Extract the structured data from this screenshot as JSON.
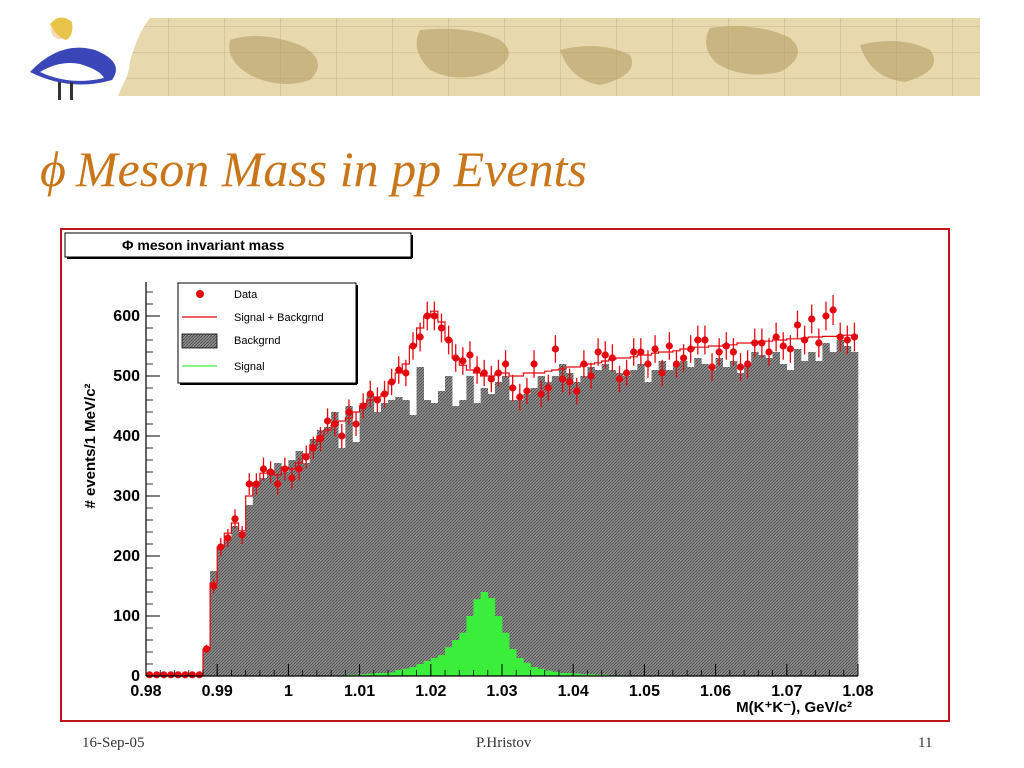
{
  "slide": {
    "title_symbol": "ϕ",
    "title_text": "Meson Mass in pp Events",
    "footer_date": "16-Sep-05",
    "footer_author": "P.Hristov",
    "footer_page": "11"
  },
  "colors": {
    "title": "#c9761a",
    "frame": "#c0141a",
    "data": "#e3080f",
    "signal_plus_background": "#e3080f",
    "background_fill": "#7a7a7a",
    "signal": "#3cee3c"
  },
  "chart_data": {
    "type": "bar",
    "title": "Φ meson invariant mass",
    "xlabel": "M(K⁺K⁻), GeV/c²",
    "ylabel": "# events/1 MeV/c²",
    "xlim": [
      0.98,
      1.08
    ],
    "ylim": [
      0,
      650
    ],
    "x_ticks": [
      "0.98",
      "0.99",
      "1",
      "1.01",
      "1.02",
      "1.03",
      "1.04",
      "1.05",
      "1.06",
      "1.07",
      "1.08"
    ],
    "y_ticks": [
      "0",
      "100",
      "200",
      "300",
      "400",
      "500",
      "600"
    ],
    "legend": {
      "position": "top-left",
      "entries": [
        "Data",
        "Signal + Backgrnd",
        "Backgrnd",
        "Signal"
      ]
    },
    "bin_width": 0.001,
    "x": [
      0.9805,
      0.9815,
      0.9825,
      0.9835,
      0.9845,
      0.9855,
      0.9865,
      0.9875,
      0.9885,
      0.9895,
      0.9905,
      0.9915,
      0.9925,
      0.9935,
      0.9945,
      0.9955,
      0.9965,
      0.9975,
      0.9985,
      0.9995,
      1.0005,
      1.0015,
      1.0025,
      1.0035,
      1.0045,
      1.0055,
      1.0065,
      1.0075,
      1.0085,
      1.0095,
      1.0105,
      1.0115,
      1.0125,
      1.0135,
      1.0145,
      1.0155,
      1.0165,
      1.0175,
      1.0185,
      1.0195,
      1.0205,
      1.0215,
      1.0225,
      1.0235,
      1.0245,
      1.0255,
      1.0265,
      1.0275,
      1.0285,
      1.0295,
      1.0305,
      1.0315,
      1.0325,
      1.0335,
      1.0345,
      1.0355,
      1.0365,
      1.0375,
      1.0385,
      1.0395,
      1.0405,
      1.0415,
      1.0425,
      1.0435,
      1.0445,
      1.0455,
      1.0465,
      1.0475,
      1.0485,
      1.0495,
      1.0505,
      1.0515,
      1.0525,
      1.0535,
      1.0545,
      1.0555,
      1.0565,
      1.0575,
      1.0585,
      1.0595,
      1.0605,
      1.0615,
      1.0625,
      1.0635,
      1.0645,
      1.0655,
      1.0665,
      1.0675,
      1.0685,
      1.0695,
      1.0705,
      1.0715,
      1.0725,
      1.0735,
      1.0745,
      1.0755,
      1.0765,
      1.0775,
      1.0785,
      1.0795
    ],
    "series": [
      {
        "name": "Data",
        "values": [
          2,
          2,
          2,
          2,
          2,
          2,
          2,
          2,
          45,
          150,
          215,
          230,
          262,
          235,
          320,
          320,
          345,
          340,
          320,
          345,
          330,
          345,
          365,
          380,
          395,
          425,
          420,
          400,
          440,
          420,
          450,
          470,
          460,
          470,
          490,
          510,
          505,
          550,
          565,
          600,
          600,
          580,
          560,
          530,
          525,
          535,
          510,
          505,
          495,
          505,
          520,
          480,
          465,
          475,
          520,
          470,
          480,
          545,
          495,
          490,
          475,
          520,
          500,
          540,
          535,
          530,
          495,
          505,
          540,
          540,
          520,
          545,
          505,
          550,
          520,
          530,
          545,
          560,
          560,
          515,
          540,
          550,
          540,
          515,
          520,
          555,
          555,
          540,
          565,
          550,
          545,
          585,
          560,
          595,
          555,
          600,
          610,
          565,
          560,
          565
        ],
        "errors": [
          0,
          0,
          0,
          0,
          0,
          0,
          0,
          0,
          7,
          12,
          15,
          15,
          16,
          15,
          18,
          18,
          19,
          18,
          18,
          19,
          18,
          19,
          19,
          19,
          20,
          21,
          20,
          20,
          21,
          20,
          21,
          22,
          21,
          22,
          22,
          23,
          22,
          23,
          24,
          24,
          24,
          24,
          24,
          23,
          23,
          23,
          23,
          22,
          22,
          22,
          23,
          22,
          22,
          22,
          23,
          22,
          22,
          23,
          22,
          22,
          22,
          23,
          22,
          23,
          23,
          23,
          22,
          22,
          23,
          23,
          23,
          23,
          22,
          23,
          23,
          23,
          23,
          24,
          24,
          23,
          23,
          23,
          23,
          23,
          23,
          24,
          24,
          23,
          24,
          23,
          23,
          24,
          24,
          24,
          24,
          24,
          25,
          24,
          24,
          24
        ]
      },
      {
        "name": "Signal + Backgrnd",
        "values": [
          2,
          2,
          2,
          2,
          2,
          2,
          2,
          2,
          45,
          155,
          215,
          238,
          255,
          242,
          300,
          322,
          338,
          342,
          335,
          348,
          345,
          355,
          370,
          385,
          400,
          410,
          418,
          425,
          430,
          440,
          450,
          460,
          465,
          470,
          490,
          505,
          520,
          550,
          580,
          600,
          608,
          590,
          560,
          530,
          518,
          510,
          505,
          500,
          500,
          505,
          505,
          500,
          500,
          505,
          505,
          505,
          508,
          510,
          512,
          515,
          515,
          518,
          520,
          522,
          525,
          528,
          530,
          530,
          532,
          535,
          535,
          538,
          540,
          540,
          542,
          545,
          545,
          548,
          548,
          550,
          550,
          552,
          552,
          555,
          555,
          556,
          558,
          558,
          560,
          560,
          562,
          562,
          563,
          565,
          565,
          566,
          566,
          567,
          568,
          568
        ]
      },
      {
        "name": "Backgrnd",
        "values": [
          0,
          0,
          0,
          0,
          0,
          0,
          0,
          0,
          45,
          175,
          215,
          230,
          250,
          240,
          285,
          320,
          330,
          340,
          355,
          340,
          360,
          375,
          355,
          395,
          410,
          415,
          440,
          380,
          450,
          390,
          455,
          470,
          440,
          455,
          460,
          465,
          460,
          435,
          515,
          460,
          455,
          475,
          500,
          450,
          460,
          500,
          455,
          480,
          470,
          490,
          500,
          460,
          460,
          470,
          480,
          500,
          490,
          500,
          520,
          505,
          490,
          500,
          515,
          510,
          520,
          510,
          505,
          500,
          510,
          520,
          490,
          510,
          525,
          510,
          520,
          525,
          515,
          530,
          520,
          510,
          530,
          515,
          525,
          505,
          520,
          540,
          535,
          530,
          540,
          520,
          510,
          545,
          525,
          540,
          525,
          555,
          540,
          560,
          550,
          540
        ]
      },
      {
        "name": "Signal",
        "values": [
          0,
          0,
          0,
          0,
          0,
          0,
          0,
          0,
          0,
          0,
          0,
          0,
          0,
          0,
          0,
          0,
          0,
          0,
          0,
          0,
          0,
          0,
          0,
          0,
          0,
          0,
          1,
          1,
          2,
          2,
          3,
          4,
          5,
          5,
          6,
          10,
          12,
          15,
          20,
          25,
          30,
          35,
          48,
          60,
          72,
          100,
          128,
          140,
          130,
          100,
          72,
          45,
          30,
          22,
          15,
          12,
          9,
          7,
          5,
          5,
          4,
          3,
          3,
          2,
          2,
          1,
          1,
          1,
          0,
          0,
          0,
          0,
          0,
          0,
          0,
          0,
          0,
          0,
          0,
          0,
          0,
          0,
          0,
          0,
          0,
          0,
          0,
          0,
          0,
          0,
          0,
          0,
          0,
          0,
          0,
          0,
          0,
          0,
          0,
          0
        ]
      }
    ]
  }
}
